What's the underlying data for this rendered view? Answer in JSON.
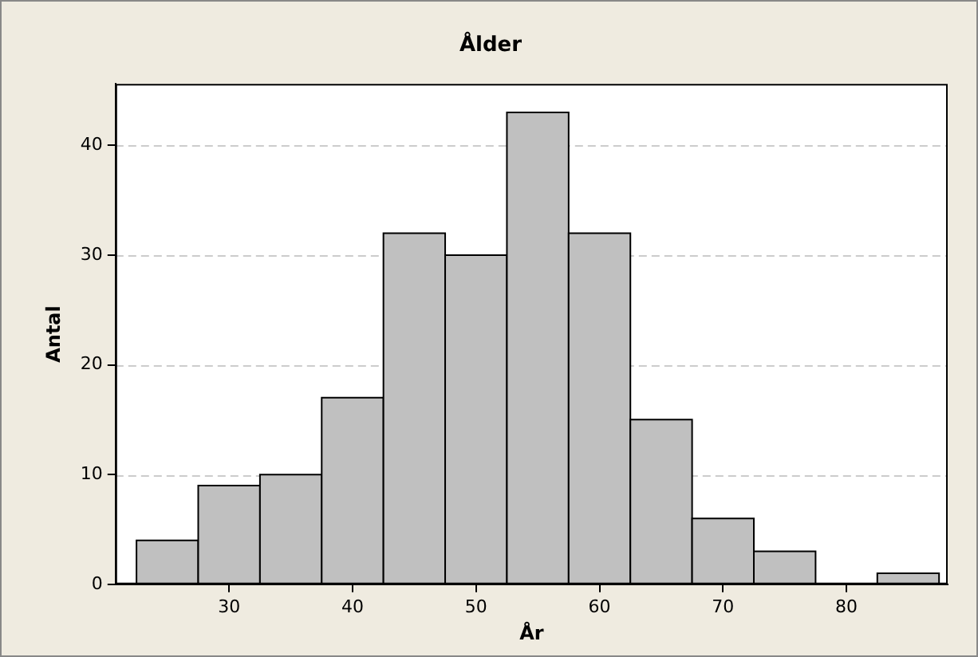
{
  "chart_data": {
    "type": "histogram",
    "title": "Ålder",
    "xlabel": "År",
    "ylabel": "Antal",
    "bins": [
      22.5,
      27.5,
      32.5,
      37.5,
      42.5,
      47.5,
      52.5,
      57.5,
      62.5,
      67.5,
      72.5,
      77.5,
      82.5,
      87.5
    ],
    "values": [
      4,
      9,
      10,
      17,
      32,
      30,
      43,
      32,
      15,
      6,
      3,
      0,
      1
    ],
    "color": "#c0c0c0",
    "xlim": [
      20.8,
      88.2
    ],
    "xticks": [
      30,
      40,
      50,
      60,
      70,
      80
    ],
    "ylim": [
      0,
      45.6
    ],
    "yticks": [
      0,
      10,
      20,
      30,
      40
    ],
    "grid": "y",
    "legend": false
  }
}
